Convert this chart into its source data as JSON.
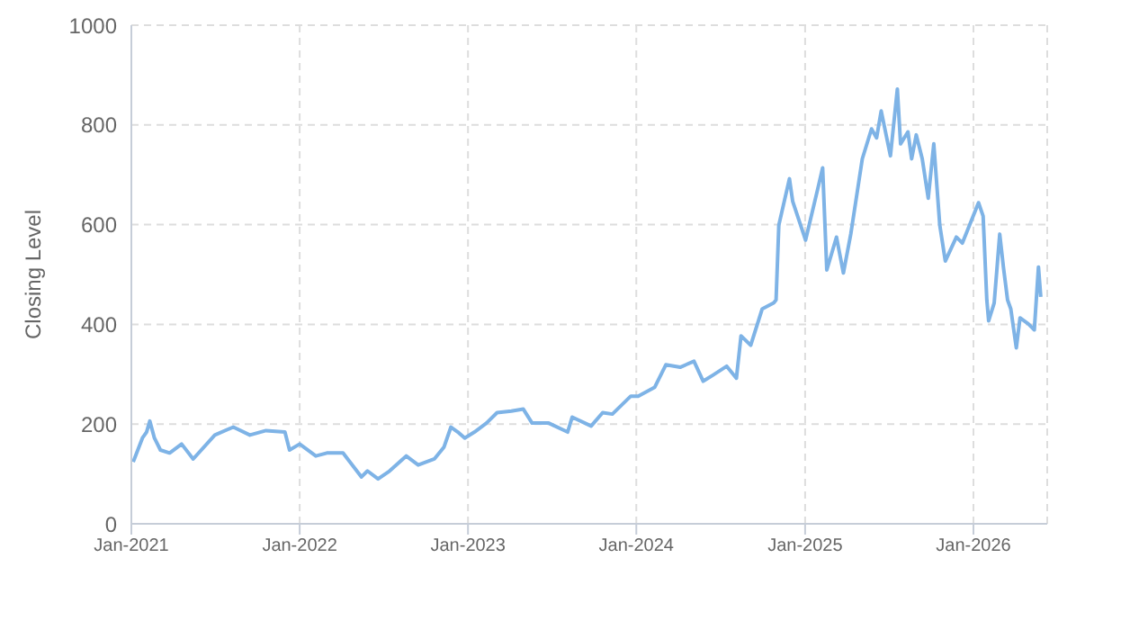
{
  "chart_data": {
    "type": "line",
    "ylabel": "Closing Level",
    "x": [
      "2021-01-05",
      "2021-01-25",
      "2021-02-03",
      "2021-02-10",
      "2021-02-20",
      "2021-03-05",
      "2021-03-25",
      "2021-04-20",
      "2021-05-15",
      "2021-07-01",
      "2021-08-10",
      "2021-09-15",
      "2021-10-20",
      "2021-11-30",
      "2021-12-10",
      "2022-01-01",
      "2022-02-05",
      "2022-03-01",
      "2022-04-05",
      "2022-05-15",
      "2022-05-28",
      "2022-06-20",
      "2022-07-15",
      "2022-08-20",
      "2022-09-15",
      "2022-10-20",
      "2022-11-10",
      "2022-11-25",
      "2022-12-10",
      "2022-12-25",
      "2023-01-15",
      "2023-02-10",
      "2023-03-05",
      "2023-04-05",
      "2023-05-01",
      "2023-05-20",
      "2023-06-25",
      "2023-08-05",
      "2023-08-15",
      "2023-09-25",
      "2023-10-20",
      "2023-11-10",
      "2023-12-20",
      "2024-01-05",
      "2024-02-10",
      "2024-03-05",
      "2024-04-05",
      "2024-05-05",
      "2024-05-25",
      "2024-06-15",
      "2024-07-15",
      "2024-08-05",
      "2024-08-15",
      "2024-09-05",
      "2024-09-30",
      "2024-10-25",
      "2024-10-30",
      "2024-11-05",
      "2024-11-28",
      "2024-12-05",
      "2025-01-02",
      "2025-01-30",
      "2025-02-08",
      "2025-02-17",
      "2025-03-10",
      "2025-03-25",
      "2025-04-10",
      "2025-04-18",
      "2025-05-05",
      "2025-05-25",
      "2025-06-05",
      "2025-06-15",
      "2025-07-05",
      "2025-07-20",
      "2025-07-27",
      "2025-08-12",
      "2025-08-20",
      "2025-08-30",
      "2025-09-12",
      "2025-09-25",
      "2025-10-07",
      "2025-10-20",
      "2025-11-01",
      "2025-11-25",
      "2025-12-08",
      "2026-01-12",
      "2026-01-22",
      "2026-01-30",
      "2026-02-03",
      "2026-02-15",
      "2026-02-27",
      "2026-03-07",
      "2026-03-16",
      "2026-03-23",
      "2026-04-04",
      "2026-04-12",
      "2026-04-30",
      "2026-05-13",
      "2026-05-22",
      "2026-05-27"
    ],
    "series": [
      {
        "color": "#7eb3e6",
        "values": [
          124,
          172,
          184,
          206,
          172,
          148,
          142,
          160,
          130,
          178,
          194,
          178,
          187,
          184,
          148,
          160,
          136,
          142,
          142,
          94,
          106,
          90,
          106,
          136,
          118,
          130,
          154,
          194,
          184,
          172,
          184,
          202,
          223,
          226,
          230,
          202,
          202,
          184,
          214,
          196,
          223,
          220,
          256,
          256,
          274,
          319,
          314,
          326,
          286,
          298,
          316,
          292,
          377,
          358,
          431,
          443,
          449,
          599,
          692,
          647,
          569,
          678,
          714,
          509,
          575,
          503,
          581,
          629,
          732,
          792,
          774,
          828,
          738,
          872,
          762,
          786,
          732,
          780,
          732,
          653,
          762,
          599,
          527,
          575,
          563,
          644,
          617,
          449,
          407,
          443,
          581,
          515,
          449,
          431,
          353,
          413,
          401,
          389,
          515,
          455
        ]
      }
    ],
    "xlim": [
      "2021-01-01",
      "2026-06-10"
    ],
    "xticks": [
      {
        "value": "2021-01-01",
        "label": "Jan-2021"
      },
      {
        "value": "2022-01-01",
        "label": "Jan-2022"
      },
      {
        "value": "2023-01-01",
        "label": "Jan-2023"
      },
      {
        "value": "2024-01-01",
        "label": "Jan-2024"
      },
      {
        "value": "2025-01-01",
        "label": "Jan-2025"
      },
      {
        "value": "2026-01-01",
        "label": "Jan-2026"
      }
    ],
    "ylim": [
      0,
      1000
    ],
    "yticks": [
      0,
      200,
      400,
      600,
      800,
      1000
    ],
    "grid": true,
    "marker": "none",
    "line_style": "solid",
    "legend": false
  }
}
